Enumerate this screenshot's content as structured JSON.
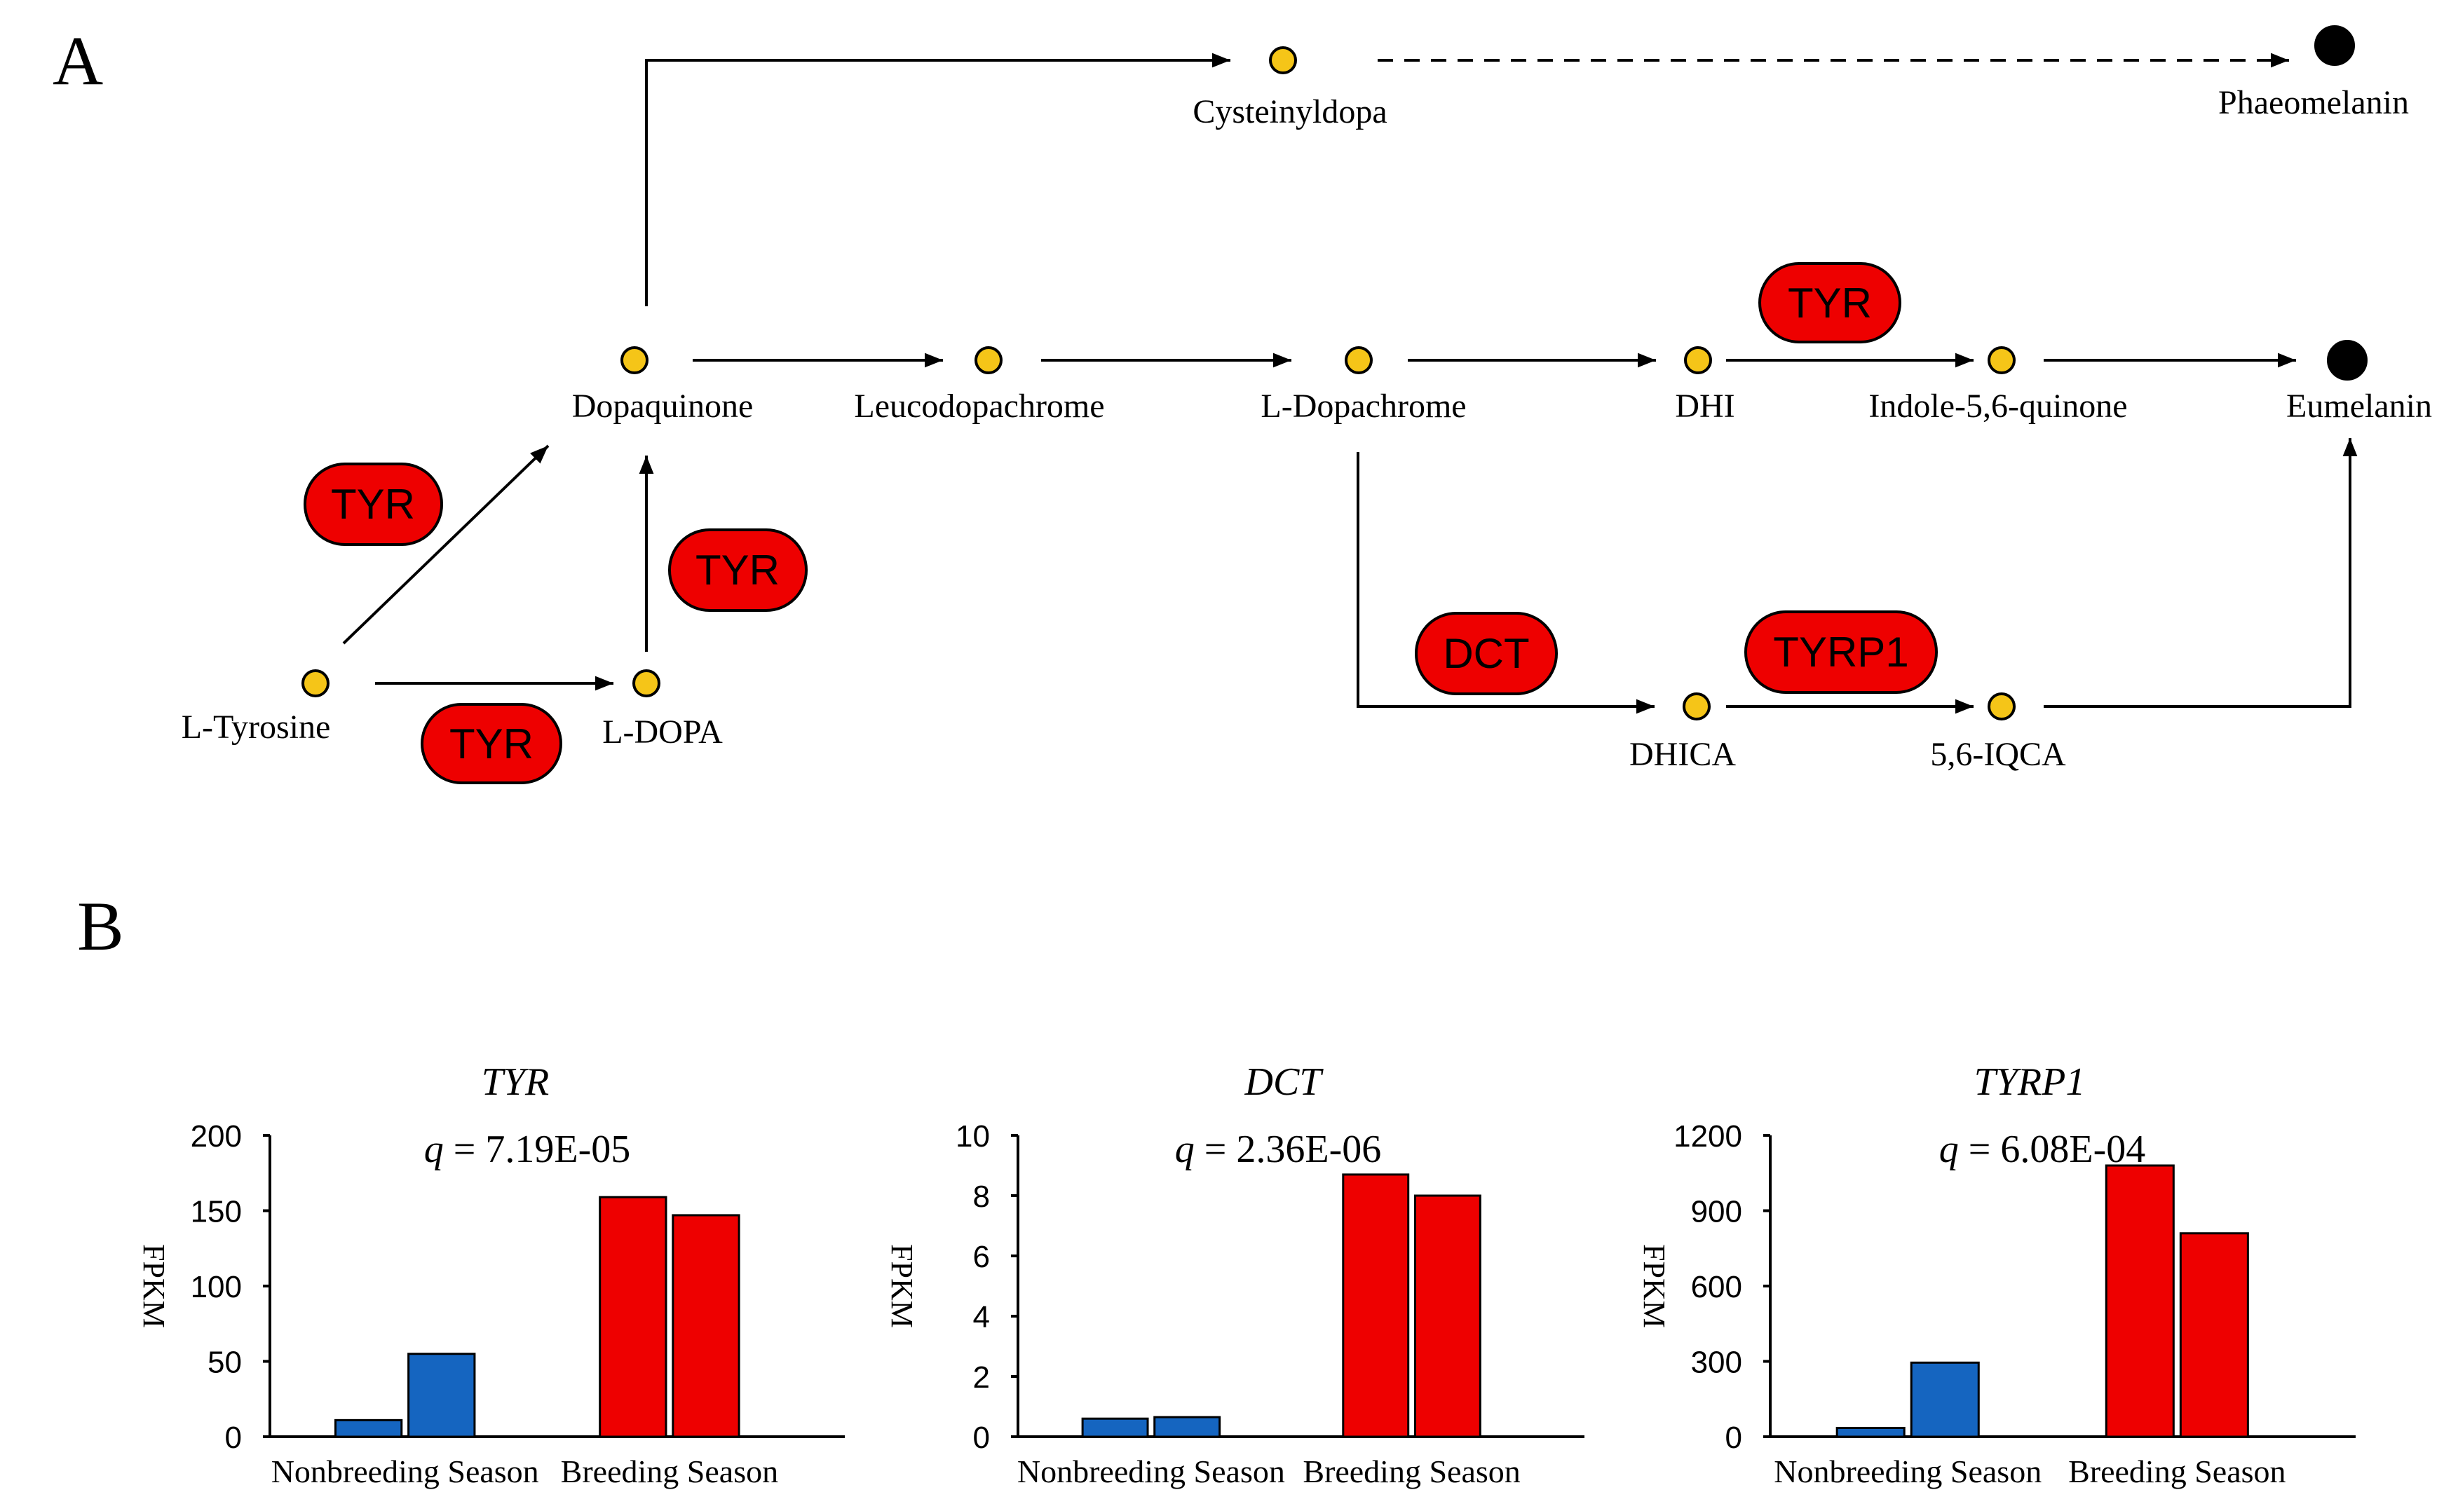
{
  "panel_labels": {
    "a": "A",
    "b": "B"
  },
  "colors": {
    "metabolite": "#f5c518",
    "final_product": "#000000",
    "enzyme": "#ee0000",
    "nonbreeding": "#1565c0",
    "breeding": "#ee0000",
    "line": "#000000"
  },
  "metabolites": {
    "cysteinyldopa": "Cysteinyldopa",
    "phaeomelanin": "Phaeomelanin",
    "dopaquinone": "Dopaquinone",
    "leucodopachrome": "Leucodopachrome",
    "l_dopachrome": "L-Dopachrome",
    "dhi": "DHI",
    "indole_quinone": "Indole-5,6-quinone",
    "eumelanin": "Eumelanin",
    "l_tyrosine": "L-Tyrosine",
    "l_dopa": "L-DOPA",
    "dhica": "DHICA",
    "iqca": "5,6-IQCA"
  },
  "enzymes": {
    "tyr_tyrosine_to_dopaquinone": "TYR",
    "tyr_dopa_to_dopaquinone": "TYR",
    "tyr_tyrosine_to_dopa": "TYR",
    "tyr_dhi_to_indolequinone": "TYR",
    "dct": "DCT",
    "tyrp1": "TYRP1"
  },
  "chart_data": [
    {
      "type": "bar",
      "title": "TYR",
      "subtitle": "q = 7.19E-05",
      "q_symbol": "q",
      "q_value": "= 7.19E-05",
      "ylabel": "FPKM",
      "ylim": [
        0,
        200
      ],
      "yticks": [
        "0",
        "50",
        "100",
        "150",
        "200"
      ],
      "ytick_values": [
        0,
        50,
        100,
        150,
        200
      ],
      "categories": [
        "Nonbreeding Season",
        "Breeding Season"
      ],
      "series": [
        {
          "name": "Nonbreeding Season",
          "values": [
            11,
            55
          ]
        },
        {
          "name": "Breeding Season",
          "values": [
            159,
            147
          ]
        }
      ]
    },
    {
      "type": "bar",
      "title": "DCT",
      "subtitle": "q = 2.36E-06",
      "q_symbol": "q",
      "q_value": "= 2.36E-06",
      "ylabel": "FPKM",
      "ylim": [
        0,
        10
      ],
      "yticks": [
        "0",
        "2",
        "4",
        "6",
        "8",
        "10"
      ],
      "ytick_values": [
        0,
        2,
        4,
        6,
        8,
        10
      ],
      "categories": [
        "Nonbreeding Season",
        "Breeding Season"
      ],
      "series": [
        {
          "name": "Nonbreeding Season",
          "values": [
            0.6,
            0.65
          ]
        },
        {
          "name": "Breeding Season",
          "values": [
            8.7,
            8.0
          ]
        }
      ]
    },
    {
      "type": "bar",
      "title": "TYRP1",
      "subtitle": "q = 6.08E-04",
      "q_symbol": "q",
      "q_value": "= 6.08E-04",
      "ylabel": "FPKM",
      "ylim": [
        0,
        1200
      ],
      "yticks": [
        "0",
        "300",
        "600",
        "900",
        "1200"
      ],
      "ytick_values": [
        0,
        300,
        600,
        900,
        1200
      ],
      "categories": [
        "Nonbreeding Season",
        "Breeding Season"
      ],
      "series": [
        {
          "name": "Nonbreeding Season",
          "values": [
            35,
            295
          ]
        },
        {
          "name": "Breeding Season",
          "values": [
            1080,
            810
          ]
        }
      ]
    }
  ]
}
